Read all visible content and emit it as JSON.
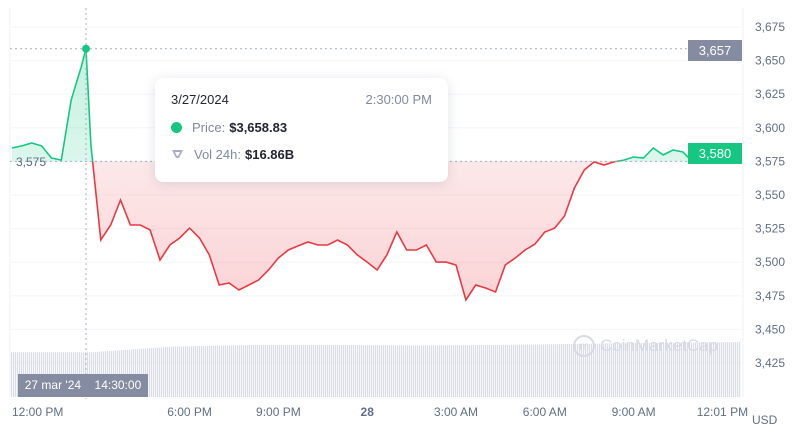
{
  "chart_data": {
    "type": "line",
    "title": "",
    "currency_label": "USD",
    "baseline": 3575,
    "baseline_label": "3,575",
    "ylim": [
      3410,
      3690
    ],
    "yticks": [
      3425,
      3450,
      3475,
      3500,
      3525,
      3550,
      3575,
      3600,
      3625,
      3650,
      3675
    ],
    "ytick_labels": [
      "3,425",
      "3,450",
      "3,475",
      "3,500",
      "3,525",
      "3,550",
      "3,575",
      "3,600",
      "3,625",
      "3,650",
      "3,675"
    ],
    "xtick_labels": [
      "12:00 PM",
      "6:00 PM",
      "9:00 PM",
      "28",
      "3:00 AM",
      "6:00 AM",
      "9:00 AM",
      "12:01 PM"
    ],
    "xtick_hours": [
      0,
      6,
      9,
      12,
      15,
      18,
      21,
      24
    ],
    "colors": {
      "up": "#16c784",
      "down": "#ea3943",
      "volume": "#d9dde5",
      "crosshair_badge": "#858ca2"
    },
    "series": [
      {
        "points": [
          [
            "03-27 12:00",
            3585.0
          ],
          [
            "03-27 12:20",
            3586.5
          ],
          [
            "03-27 12:40",
            3588.7
          ],
          [
            "03-27 13:00",
            3586.5
          ],
          [
            "03-27 13:20",
            3577.5
          ],
          [
            "03-27 13:40",
            3576.0
          ],
          [
            "03-27 14:00",
            3620.7
          ],
          [
            "03-27 14:20",
            3645.0
          ],
          [
            "03-27 14:30",
            3658.83
          ],
          [
            "03-27 14:40",
            3587.2
          ],
          [
            "03-27 15:00",
            3516.5
          ],
          [
            "03-27 15:20",
            3527.7
          ],
          [
            "03-27 15:40",
            3546.3
          ],
          [
            "03-27 16:00",
            3527.7
          ],
          [
            "03-27 16:20",
            3527.7
          ],
          [
            "03-27 16:40",
            3524.0
          ],
          [
            "03-27 17:00",
            3501.6
          ],
          [
            "03-27 17:20",
            3512.8
          ],
          [
            "03-27 17:40",
            3518.0
          ],
          [
            "03-27 18:00",
            3525.4
          ],
          [
            "03-27 18:20",
            3518.0
          ],
          [
            "03-27 18:40",
            3505.4
          ],
          [
            "03-27 19:00",
            3483.0
          ],
          [
            "03-27 19:20",
            3484.5
          ],
          [
            "03-27 19:40",
            3479.3
          ],
          [
            "03-27 20:00",
            3483.0
          ],
          [
            "03-27 20:20",
            3486.8
          ],
          [
            "03-27 20:40",
            3494.2
          ],
          [
            "03-27 21:00",
            3503.1
          ],
          [
            "03-27 21:20",
            3509.1
          ],
          [
            "03-27 21:40",
            3512.1
          ],
          [
            "03-27 22:00",
            3515.0
          ],
          [
            "03-27 22:20",
            3512.8
          ],
          [
            "03-27 22:40",
            3512.8
          ],
          [
            "03-27 23:00",
            3516.5
          ],
          [
            "03-27 23:20",
            3512.8
          ],
          [
            "03-27 23:40",
            3505.4
          ],
          [
            "03-28 00:00",
            3500.1
          ],
          [
            "03-28 00:20",
            3494.2
          ],
          [
            "03-28 00:40",
            3505.4
          ],
          [
            "03-28 01:00",
            3522.5
          ],
          [
            "03-28 01:20",
            3509.1
          ],
          [
            "03-28 01:40",
            3509.1
          ],
          [
            "03-28 02:00",
            3512.8
          ],
          [
            "03-28 02:20",
            3500.1
          ],
          [
            "03-28 02:40",
            3500.1
          ],
          [
            "03-28 03:00",
            3497.9
          ],
          [
            "03-28 03:20",
            3471.9
          ],
          [
            "03-28 03:40",
            3483.0
          ],
          [
            "03-28 04:00",
            3480.8
          ],
          [
            "03-28 04:20",
            3477.8
          ],
          [
            "03-28 04:40",
            3497.9
          ],
          [
            "03-28 05:00",
            3503.1
          ],
          [
            "03-28 05:20",
            3509.1
          ],
          [
            "03-28 05:40",
            3513.5
          ],
          [
            "03-28 06:00",
            3522.5
          ],
          [
            "03-28 06:20",
            3525.4
          ],
          [
            "03-28 06:40",
            3534.4
          ],
          [
            "03-28 07:00",
            3555.2
          ],
          [
            "03-28 07:20",
            3568.6
          ],
          [
            "03-28 07:40",
            3574.6
          ],
          [
            "03-28 08:00",
            3572.3
          ],
          [
            "03-28 08:20",
            3574.6
          ],
          [
            "03-28 08:40",
            3576.0
          ],
          [
            "03-28 09:00",
            3578.3
          ],
          [
            "03-28 09:20",
            3577.5
          ],
          [
            "03-28 09:40",
            3585.0
          ],
          [
            "03-28 10:00",
            3579.8
          ],
          [
            "03-28 10:20",
            3583.5
          ],
          [
            "03-28 10:40",
            3582.0
          ],
          [
            "03-28 11:00",
            3574.6
          ],
          [
            "03-28 11:20",
            3579.0
          ],
          [
            "03-28 12:01",
            3580.0
          ]
        ]
      }
    ],
    "volume_relative": [
      0.8,
      0.8,
      0.9,
      0.93,
      0.93,
      0.92,
      0.93,
      0.95,
      0.97,
      0.98
    ]
  },
  "hover": {
    "date": "3/27/2024",
    "time": "2:30:00 PM",
    "price_label": "Price:",
    "price_value": "$3,658.83",
    "vol_label": "Vol 24h:",
    "vol_value": "$16.86B",
    "x_badge_date": "27 mar '24",
    "x_badge_time": "14:30:00",
    "y_badge": "3,657"
  },
  "current_price_badge": "3,580",
  "watermark": "CoinMarketCap"
}
